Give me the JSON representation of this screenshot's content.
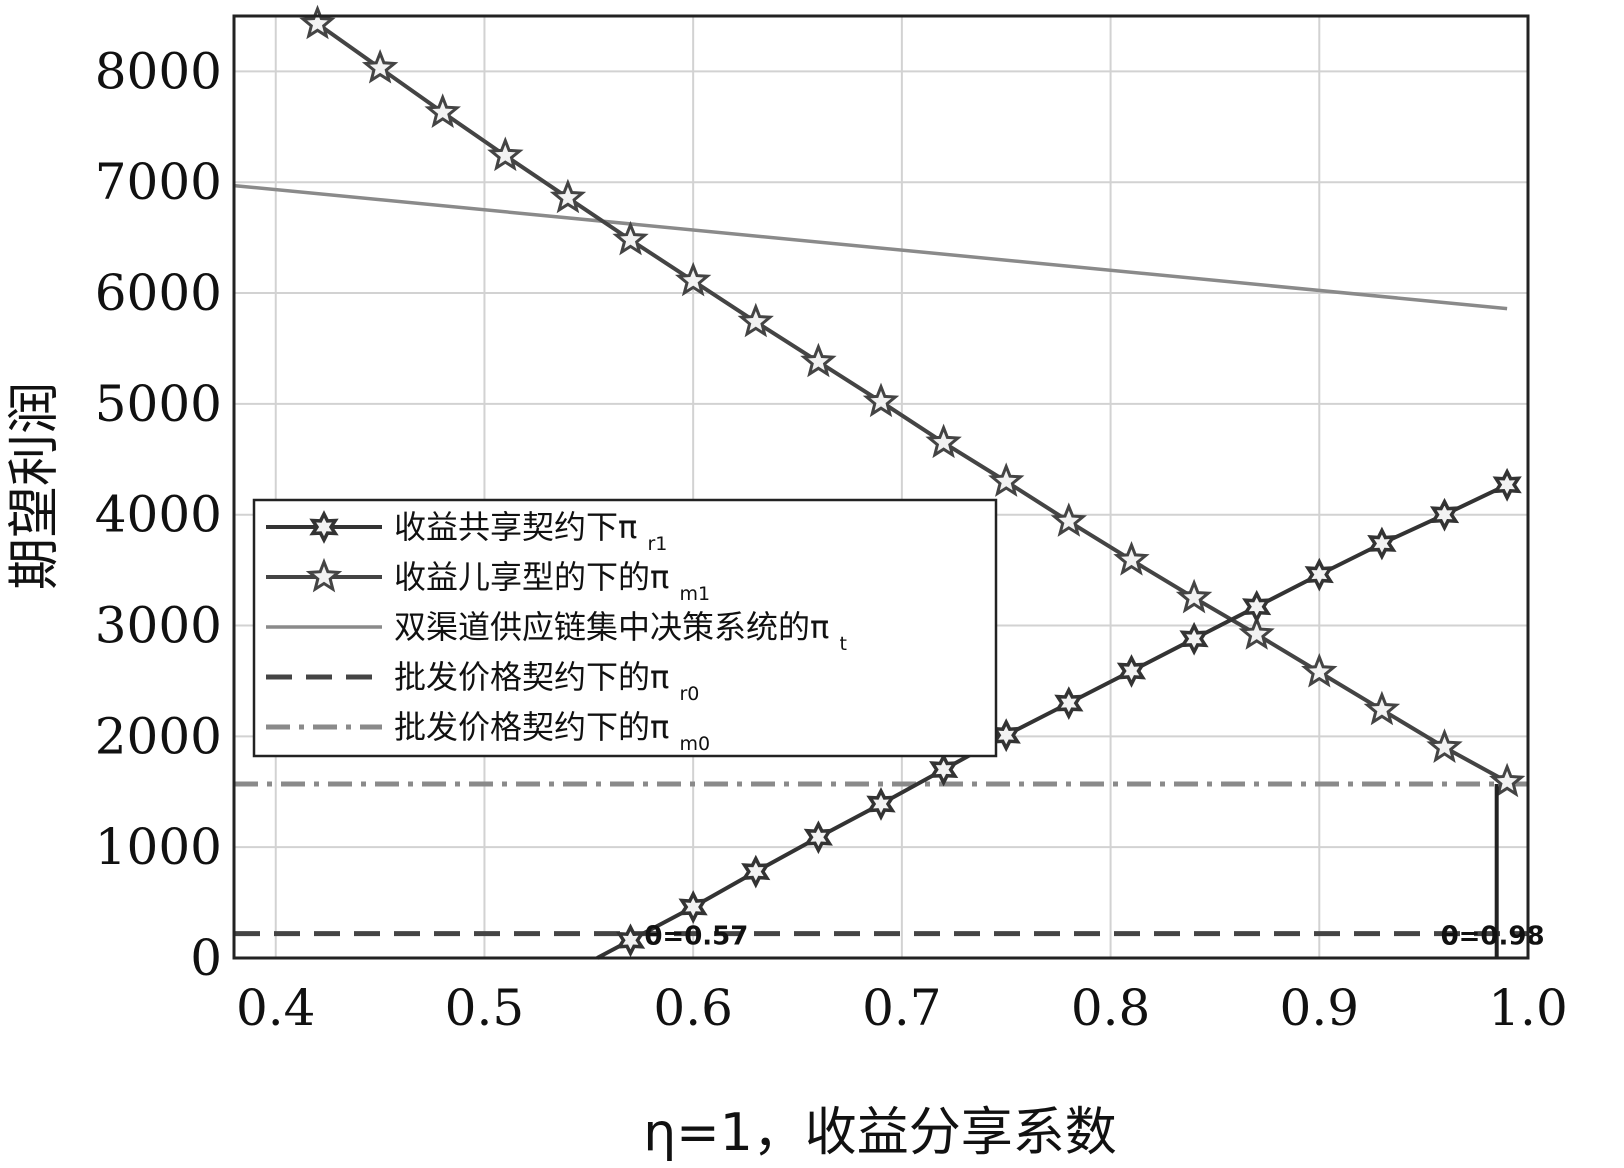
{
  "chart_data": {
    "type": "line",
    "xlabel": "η=1，收益分享系数",
    "ylabel": "期望利润",
    "xlim": [
      0.38,
      1.0
    ],
    "ylim": [
      0,
      8500
    ],
    "xticks": [
      0.4,
      0.5,
      0.6,
      0.7,
      0.8,
      0.9,
      1.0
    ],
    "xtick_labels": [
      "0.4",
      "0.5",
      "0.6",
      "0.7",
      "0.8",
      "0.9",
      "1.0"
    ],
    "yticks": [
      0,
      1000,
      2000,
      3000,
      4000,
      5000,
      6000,
      7000,
      8000
    ],
    "ytick_labels": [
      "0",
      "1000",
      "2000",
      "3000",
      "4000",
      "5000",
      "6000",
      "7000",
      "8000"
    ],
    "grid": true,
    "legend_position": "center-left",
    "series": [
      {
        "name": "收益共享契约下",
        "symbol": "π",
        "subscript": "r1",
        "style": "solid",
        "marker": "star6",
        "color": "#333333",
        "x": [
          0.57,
          0.6,
          0.63,
          0.66,
          0.69,
          0.72,
          0.75,
          0.78,
          0.81,
          0.84,
          0.87,
          0.9,
          0.93,
          0.96,
          0.99
        ],
        "y": [
          160,
          460,
          780,
          1090,
          1390,
          1700,
          2010,
          2300,
          2590,
          2880,
          3170,
          3460,
          3740,
          4000,
          4270
        ]
      },
      {
        "name": "收益儿享型的下的",
        "symbol": "π",
        "subscript": "m1",
        "style": "solid",
        "marker": "star5",
        "color": "#444444",
        "x": [
          0.42,
          0.45,
          0.48,
          0.51,
          0.54,
          0.57,
          0.6,
          0.63,
          0.66,
          0.69,
          0.72,
          0.75,
          0.78,
          0.81,
          0.84,
          0.87,
          0.9,
          0.93,
          0.96,
          0.99
        ],
        "y": [
          8430,
          8030,
          7630,
          7240,
          6860,
          6480,
          6110,
          5740,
          5380,
          5020,
          4650,
          4300,
          3940,
          3590,
          3250,
          2920,
          2580,
          2240,
          1900,
          1590
        ]
      },
      {
        "name": "双渠道供应链集中决策系统的",
        "symbol": "π",
        "subscript": "t",
        "style": "solid",
        "marker": "none",
        "color": "#8a8a8a",
        "x": [
          0.38,
          0.99
        ],
        "y": [
          6970,
          5860
        ]
      },
      {
        "name": "批发价格契约下的",
        "symbol": "π",
        "subscript": "r0",
        "style": "dashed",
        "marker": "none",
        "color": "#444444",
        "x": [
          0.38,
          1.0
        ],
        "y": [
          220,
          220
        ]
      },
      {
        "name": "批发价格契约下的",
        "symbol": "π",
        "subscript": "m0",
        "style": "dashdot",
        "marker": "none",
        "color": "#8a8a8a",
        "x": [
          0.38,
          1.0
        ],
        "y": [
          1570,
          1570
        ]
      }
    ],
    "annotations": [
      {
        "text": "θ=0.57",
        "x": 0.57,
        "y": 160
      },
      {
        "text": "θ=0.98",
        "x": 0.985,
        "y": 160
      }
    ],
    "vertical_markers": [
      {
        "x": 0.985,
        "y_from": 0,
        "y_to": 1570
      }
    ]
  }
}
